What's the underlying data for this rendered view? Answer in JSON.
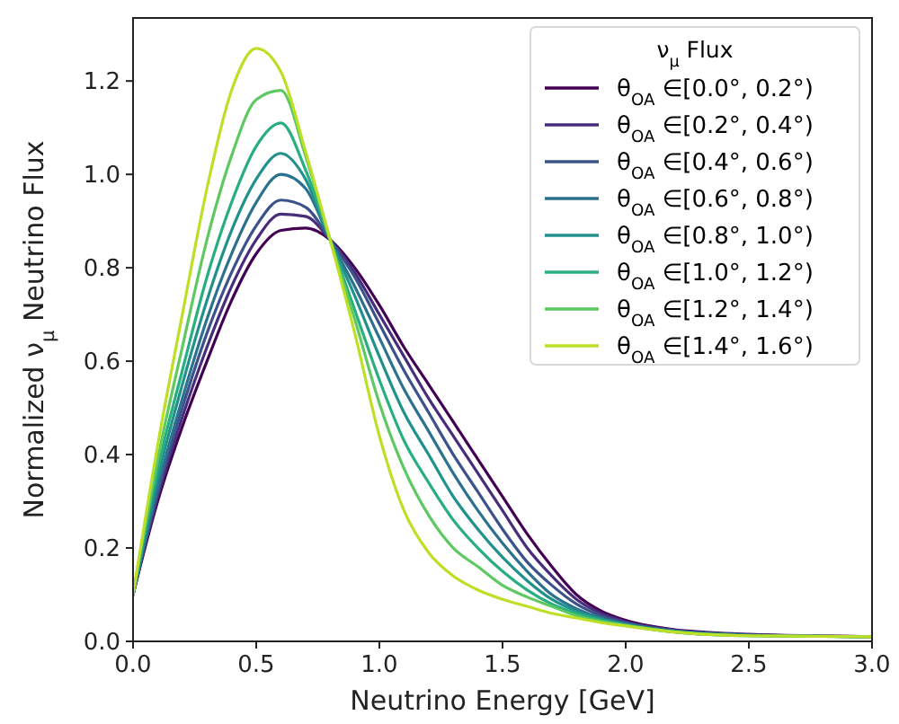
{
  "chart_data": {
    "type": "line",
    "xlabel": "Neutrino Energy [GeV]",
    "ylabel": "Normalized ν$_{μ}$ Neutrino Flux",
    "legend_title": "ν$_{μ}$ Flux",
    "legend": "top right",
    "grid": false,
    "marker": "none",
    "line_style": "solid",
    "xlim": [
      0,
      3
    ],
    "ylim": [
      0,
      1.335
    ],
    "xticks": [
      {
        "value": 0,
        "label": "0.0"
      },
      0.5,
      {
        "value": 1,
        "label": "1.0"
      },
      1.5,
      {
        "value": 2,
        "label": "2.0"
      },
      2.5,
      {
        "value": 3,
        "label": "3.0"
      }
    ],
    "yticks": [
      {
        "value": 0,
        "label": "0.0"
      },
      0.2,
      0.4,
      0.6,
      0.8,
      {
        "value": 1,
        "label": "1.0"
      },
      1.2
    ],
    "x": [
      0,
      0.1,
      0.2,
      0.3,
      0.4,
      0.5,
      0.6,
      0.7,
      0.8,
      0.9,
      1.0,
      1.1,
      1.2,
      1.3,
      1.4,
      1.5,
      1.6,
      1.7,
      1.8,
      1.9,
      2.0,
      2.2,
      2.5,
      3.0
    ],
    "series": [
      {
        "name": "θ$_{OA}$ ∈[0.0°, 0.2°)",
        "color": "#440154",
        "values": [
          0.1,
          0.3,
          0.46,
          0.6,
          0.73,
          0.83,
          0.88,
          0.885,
          0.86,
          0.8,
          0.72,
          0.63,
          0.55,
          0.47,
          0.39,
          0.31,
          0.23,
          0.16,
          0.1,
          0.065,
          0.045,
          0.025,
          0.015,
          0.01
        ]
      },
      {
        "name": "θ$_{OA}$ ∈[0.2°, 0.4°)",
        "color": "#472d7b",
        "values": [
          0.1,
          0.31,
          0.48,
          0.63,
          0.76,
          0.86,
          0.915,
          0.91,
          0.86,
          0.79,
          0.7,
          0.61,
          0.52,
          0.44,
          0.36,
          0.28,
          0.2,
          0.14,
          0.09,
          0.06,
          0.042,
          0.024,
          0.014,
          0.01
        ]
      },
      {
        "name": "θ$_{OA}$ ∈[0.4°, 0.6°)",
        "color": "#3b528b",
        "values": [
          0.1,
          0.32,
          0.5,
          0.66,
          0.79,
          0.89,
          0.945,
          0.93,
          0.86,
          0.78,
          0.68,
          0.58,
          0.49,
          0.4,
          0.32,
          0.24,
          0.17,
          0.12,
          0.08,
          0.055,
          0.04,
          0.023,
          0.014,
          null
        ]
      },
      {
        "name": "θ$_{OA}$ ∈[0.6°, 0.8°)",
        "color": "#2c728e",
        "values": [
          0.1,
          0.33,
          0.52,
          0.69,
          0.83,
          0.94,
          1.0,
          0.97,
          0.86,
          0.76,
          0.65,
          0.54,
          0.45,
          0.36,
          0.28,
          0.21,
          0.15,
          0.1,
          0.07,
          0.05,
          0.038,
          0.022,
          0.013,
          0.01
        ]
      },
      {
        "name": "θ$_{OA}$ ∈[0.8°, 1.0°)",
        "color": "#21918c",
        "values": [
          0.1,
          0.35,
          0.55,
          0.73,
          0.88,
          0.99,
          1.045,
          0.99,
          0.86,
          0.74,
          0.61,
          0.49,
          0.4,
          0.31,
          0.24,
          0.18,
          0.13,
          0.09,
          0.065,
          0.048,
          0.036,
          0.021,
          0.013,
          0.01
        ]
      },
      {
        "name": "θ$_{OA}$ ∈[1.0°, 1.2°)",
        "color": "#28ae80",
        "values": [
          0.1,
          0.37,
          0.58,
          0.78,
          0.94,
          1.06,
          1.11,
          1.01,
          0.86,
          0.71,
          0.56,
          0.43,
          0.34,
          0.26,
          0.2,
          0.15,
          0.11,
          0.08,
          0.06,
          0.045,
          0.035,
          0.02,
          0.012,
          0.01
        ]
      },
      {
        "name": "θ$_{OA}$ ∈[1.2°, 1.4°)",
        "color": "#5ec962",
        "values": [
          0.1,
          0.39,
          0.63,
          0.86,
          1.04,
          1.16,
          1.18,
          1.04,
          0.86,
          0.69,
          0.51,
          0.37,
          0.27,
          0.2,
          0.16,
          0.12,
          0.095,
          0.075,
          0.055,
          0.043,
          0.034,
          0.02,
          0.012,
          0.01
        ]
      },
      {
        "name": "θ$_{OA}$ ∈[1.4°, 1.6°)",
        "color": "#bddf26",
        "values": [
          0.1,
          0.42,
          0.7,
          0.97,
          1.18,
          1.27,
          1.22,
          1.05,
          0.86,
          0.66,
          0.44,
          0.28,
          0.19,
          0.14,
          0.11,
          0.09,
          0.075,
          0.06,
          0.05,
          0.04,
          0.033,
          0.02,
          0.012,
          0.01
        ]
      }
    ]
  }
}
